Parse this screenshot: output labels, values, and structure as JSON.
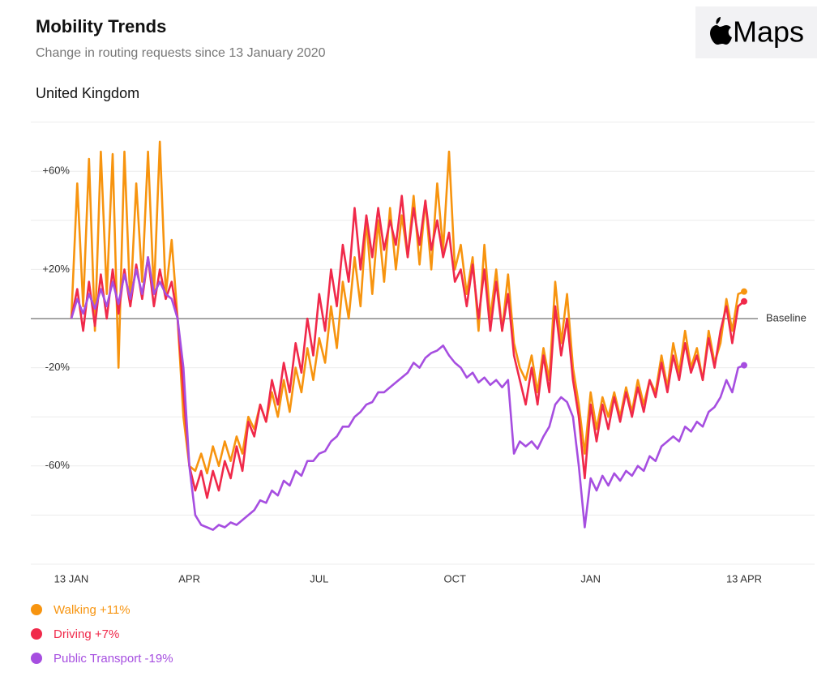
{
  "chart_data": {
    "type": "line",
    "title": "Mobility Trends",
    "subtitle": "Change in routing requests since 13 January 2020",
    "region": "United Kingdom",
    "logo": "Maps",
    "categories": [
      "13 JAN",
      null,
      null,
      null,
      null,
      null,
      null,
      null,
      null,
      null,
      null,
      null,
      null,
      null,
      null,
      null,
      null,
      null,
      null,
      null,
      "APR",
      null,
      null,
      null,
      null,
      null,
      null,
      null,
      null,
      null,
      null,
      null,
      null,
      null,
      null,
      null,
      null,
      null,
      null,
      null,
      null,
      null,
      "JUL",
      null,
      null,
      null,
      null,
      null,
      null,
      null,
      null,
      null,
      null,
      null,
      null,
      null,
      null,
      null,
      null,
      null,
      null,
      null,
      null,
      null,
      null,
      "OCT",
      null,
      null,
      null,
      null,
      null,
      null,
      null,
      null,
      null,
      null,
      null,
      null,
      null,
      null,
      null,
      null,
      null,
      null,
      null,
      null,
      null,
      null,
      "JAN",
      null,
      null,
      null,
      null,
      null,
      null,
      null,
      null,
      null,
      null,
      null,
      null,
      null,
      null,
      null,
      null,
      null,
      null,
      null,
      null,
      null,
      null,
      null,
      null,
      null,
      "13 APR"
    ],
    "series": [
      {
        "name": "Walking +11%",
        "color": "#f7940f",
        "values": [
          0,
          55,
          5,
          65,
          -5,
          68,
          10,
          67,
          -20,
          68,
          5,
          55,
          15,
          68,
          10,
          72,
          10,
          32,
          0,
          -40,
          -60,
          -62,
          -55,
          -63,
          -52,
          -60,
          -50,
          -58,
          -48,
          -55,
          -40,
          -45,
          -35,
          -42,
          -30,
          -40,
          -25,
          -38,
          -20,
          -30,
          -12,
          -25,
          -8,
          -18,
          5,
          -12,
          15,
          0,
          25,
          5,
          40,
          10,
          40,
          15,
          45,
          20,
          42,
          25,
          50,
          22,
          48,
          20,
          55,
          28,
          68,
          20,
          30,
          10,
          25,
          -5,
          30,
          0,
          20,
          -5,
          18,
          -10,
          -20,
          -25,
          -15,
          -30,
          -12,
          -25,
          15,
          -10,
          10,
          -20,
          -35,
          -55,
          -30,
          -45,
          -32,
          -40,
          -30,
          -40,
          -28,
          -38,
          -25,
          -35,
          -25,
          -30,
          -15,
          -28,
          -10,
          -22,
          -5,
          -20,
          -12,
          -25,
          -5,
          -18,
          -10,
          8,
          -5,
          10,
          11
        ]
      },
      {
        "name": "Driving +7%",
        "color": "#f0294a",
        "values": [
          0,
          12,
          -5,
          15,
          -3,
          18,
          0,
          20,
          2,
          20,
          5,
          22,
          8,
          25,
          5,
          20,
          8,
          15,
          0,
          -30,
          -60,
          -70,
          -62,
          -73,
          -62,
          -70,
          -58,
          -65,
          -52,
          -62,
          -42,
          -48,
          -35,
          -42,
          -25,
          -35,
          -18,
          -30,
          -10,
          -22,
          0,
          -15,
          10,
          -5,
          20,
          5,
          30,
          15,
          45,
          20,
          42,
          25,
          45,
          28,
          40,
          30,
          50,
          25,
          45,
          30,
          48,
          28,
          40,
          25,
          35,
          15,
          20,
          5,
          22,
          0,
          20,
          -5,
          15,
          -5,
          10,
          -15,
          -25,
          -35,
          -20,
          -35,
          -15,
          -30,
          5,
          -15,
          0,
          -25,
          -40,
          -65,
          -35,
          -50,
          -35,
          -45,
          -32,
          -42,
          -30,
          -40,
          -28,
          -38,
          -25,
          -32,
          -18,
          -30,
          -15,
          -25,
          -10,
          -22,
          -15,
          -25,
          -8,
          -20,
          -5,
          5,
          -10,
          5,
          7
        ]
      },
      {
        "name": "Public Transport -19%",
        "color": "#a64ee0",
        "values": [
          0,
          8,
          2,
          10,
          4,
          12,
          5,
          15,
          6,
          18,
          8,
          20,
          10,
          25,
          10,
          15,
          10,
          8,
          0,
          -20,
          -60,
          -80,
          -84,
          -85,
          -86,
          -84,
          -85,
          -83,
          -84,
          -82,
          -80,
          -78,
          -74,
          -75,
          -70,
          -72,
          -66,
          -68,
          -62,
          -64,
          -58,
          -58,
          -55,
          -54,
          -50,
          -48,
          -44,
          -44,
          -40,
          -38,
          -35,
          -34,
          -30,
          -30,
          -28,
          -26,
          -24,
          -22,
          -18,
          -20,
          -16,
          -14,
          -13,
          -11,
          -15,
          -18,
          -20,
          -24,
          -22,
          -26,
          -24,
          -27,
          -25,
          -28,
          -25,
          -55,
          -50,
          -52,
          -50,
          -53,
          -48,
          -44,
          -35,
          -32,
          -34,
          -40,
          -60,
          -85,
          -65,
          -70,
          -64,
          -68,
          -63,
          -66,
          -62,
          -64,
          -60,
          -62,
          -56,
          -58,
          -52,
          -50,
          -48,
          -50,
          -44,
          -46,
          -42,
          -44,
          -38,
          -36,
          -32,
          -25,
          -30,
          -20,
          -19
        ]
      }
    ],
    "ylim": [
      -100,
      80
    ],
    "yticks": [
      {
        "value": 60,
        "label": "+60%"
      },
      {
        "value": 20,
        "label": "+20%"
      },
      {
        "value": -20,
        "label": "-20%"
      },
      {
        "value": -60,
        "label": "-60%"
      }
    ],
    "gridlines": [
      80,
      40,
      -40,
      -80,
      -100
    ],
    "baseline": {
      "value": 0,
      "label": "Baseline"
    },
    "grid": true
  }
}
